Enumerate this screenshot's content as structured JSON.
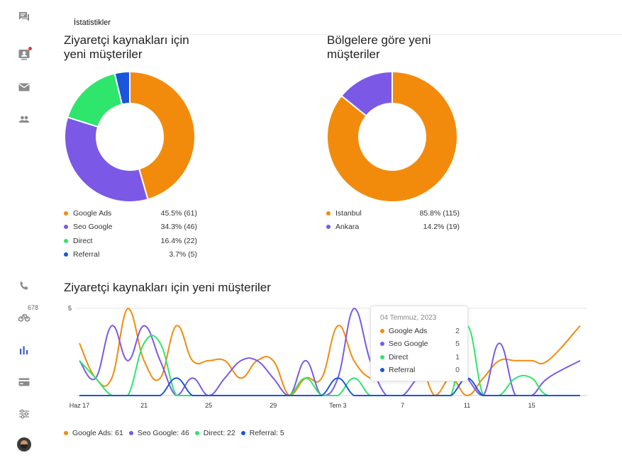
{
  "sidebar": {
    "items": [
      {
        "icon": "chat-icon"
      },
      {
        "icon": "contact-card-icon",
        "has_notification": true
      },
      {
        "icon": "mail-icon"
      },
      {
        "icon": "people-icon"
      },
      {
        "icon": "phone-icon"
      },
      {
        "icon": "bike-icon",
        "badge": "678"
      },
      {
        "icon": "bar-chart-icon",
        "active": true
      },
      {
        "icon": "credit-card-icon"
      },
      {
        "icon": "sliders-icon"
      }
    ],
    "avatar": "user-avatar"
  },
  "page": {
    "title": "İstatistikler"
  },
  "colors": {
    "google_ads": "#f28b0c",
    "seo_google": "#7b59e6",
    "direct": "#2ee66b",
    "referral": "#1a56db",
    "istanbul": "#f28b0c",
    "ankara": "#7b59e6"
  },
  "panels": {
    "sources": {
      "title_line1": "Ziyaretçi kaynakları için",
      "title_line2": "yeni müşteriler",
      "legend": [
        {
          "label": "Google Ads",
          "value": "45.5% (61)"
        },
        {
          "label": "Seo Google",
          "value": "34.3% (46)"
        },
        {
          "label": "Direct",
          "value": "16.4% (22)"
        },
        {
          "label": "Referral",
          "value": "3.7% (5)"
        }
      ]
    },
    "regions": {
      "title_line1": "Bölgelere göre yeni",
      "title_line2": "müşteriler",
      "legend": [
        {
          "label": "Istanbul",
          "value": "85.8% (115)"
        },
        {
          "label": "Ankara",
          "value": "14.2% (19)"
        }
      ]
    },
    "timeline": {
      "title": "Ziyaretçi kaynakları için yeni müşteriler",
      "legend": [
        {
          "label": "Google Ads: 61"
        },
        {
          "label": "Seo Google: 46"
        },
        {
          "label": "Direct: 22"
        },
        {
          "label": "Referral: 5"
        }
      ],
      "tooltip": {
        "date": "04 Temmuz, 2023",
        "rows": [
          {
            "label": "Google Ads",
            "value": "2"
          },
          {
            "label": "Seo Google",
            "value": "5"
          },
          {
            "label": "Direct",
            "value": "1"
          },
          {
            "label": "Referral",
            "value": "0"
          }
        ]
      }
    }
  },
  "chart_data": [
    {
      "type": "pie",
      "title": "Ziyaretçi kaynakları için yeni müşteriler",
      "categories": [
        "Google Ads",
        "Seo Google",
        "Direct",
        "Referral"
      ],
      "values": [
        61,
        46,
        22,
        5
      ],
      "legend": "bottom"
    },
    {
      "type": "pie",
      "title": "Bölgelere göre yeni müşteriler",
      "categories": [
        "Istanbul",
        "Ankara"
      ],
      "values": [
        115,
        19
      ],
      "legend": "bottom"
    },
    {
      "type": "line",
      "title": "Ziyaretçi kaynakları için yeni müşteriler",
      "x": [
        "2023-06-17",
        "2023-06-18",
        "2023-06-19",
        "2023-06-20",
        "2023-06-21",
        "2023-06-22",
        "2023-06-23",
        "2023-06-24",
        "2023-06-25",
        "2023-06-26",
        "2023-06-27",
        "2023-06-28",
        "2023-06-29",
        "2023-06-30",
        "2023-07-01",
        "2023-07-02",
        "2023-07-03",
        "2023-07-04",
        "2023-07-05",
        "2023-07-06",
        "2023-07-07",
        "2023-07-08",
        "2023-07-09",
        "2023-07-10",
        "2023-07-11",
        "2023-07-12",
        "2023-07-13",
        "2023-07-14",
        "2023-07-15",
        "2023-07-16",
        "2023-07-18"
      ],
      "x_tick_labels": [
        "Haz 17",
        "21",
        "25",
        "29",
        "Tem 3",
        "7",
        "11",
        "15"
      ],
      "y_tick_labels": [
        "5"
      ],
      "ylim": [
        0,
        5
      ],
      "grid": true,
      "legend": "bottom",
      "series": [
        {
          "name": "Google Ads",
          "values": [
            3,
            1,
            1,
            5,
            2,
            1,
            4,
            2,
            2,
            2,
            1,
            2,
            2,
            0,
            1,
            1,
            4,
            2,
            1,
            1,
            1,
            2,
            0,
            1,
            0,
            1,
            2,
            2,
            2,
            2,
            4
          ]
        },
        {
          "name": "Seo Google",
          "values": [
            2,
            1,
            4,
            2,
            4,
            2,
            0,
            1,
            0,
            1,
            2,
            2,
            1,
            0,
            2,
            0,
            1,
            5,
            2,
            0,
            0,
            1,
            1,
            2,
            1,
            0,
            3,
            0,
            0,
            1,
            2
          ]
        },
        {
          "name": "Direct",
          "values": [
            2,
            1,
            0,
            0,
            3,
            3,
            0,
            0,
            0,
            0,
            0,
            0,
            0,
            0,
            1,
            0,
            0,
            1,
            0,
            0,
            0,
            0,
            0,
            0,
            4,
            0,
            0,
            1,
            1,
            0,
            0
          ]
        },
        {
          "name": "Referral",
          "values": [
            0,
            0,
            0,
            0,
            0,
            0,
            1,
            0,
            0,
            0,
            0,
            0,
            0,
            0,
            0,
            0,
            1,
            0,
            0,
            0,
            0,
            0,
            0,
            0,
            1,
            0,
            0,
            0,
            0,
            0,
            0
          ]
        }
      ]
    }
  ]
}
